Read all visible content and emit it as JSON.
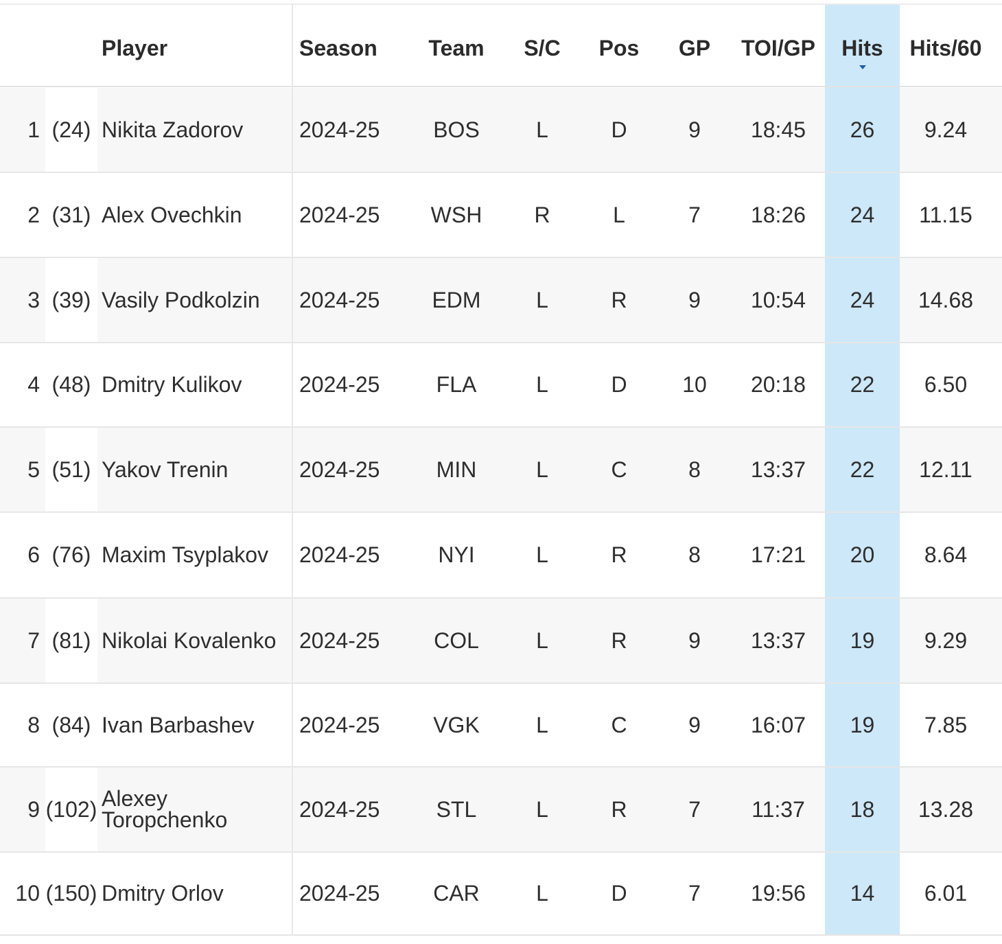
{
  "table": {
    "columns": {
      "player": "Player",
      "season": "Season",
      "team": "Team",
      "sc": "S/C",
      "pos": "Pos",
      "gp": "GP",
      "toi": "TOI/GP",
      "hits": "Hits",
      "hits60": "Hits/60"
    },
    "sorted_column": "Hits",
    "sort_direction": "descending",
    "highlight_color": "#cde8f8",
    "rows": [
      {
        "rank": "1",
        "overall": "(24)",
        "player": "Nikita Zadorov",
        "season": "2024-25",
        "team": "BOS",
        "sc": "L",
        "pos": "D",
        "gp": "9",
        "toi": "18:45",
        "hits": "26",
        "hits60": "9.24"
      },
      {
        "rank": "2",
        "overall": "(31)",
        "player": "Alex Ovechkin",
        "season": "2024-25",
        "team": "WSH",
        "sc": "R",
        "pos": "L",
        "gp": "7",
        "toi": "18:26",
        "hits": "24",
        "hits60": "11.15"
      },
      {
        "rank": "3",
        "overall": "(39)",
        "player": "Vasily Podkolzin",
        "season": "2024-25",
        "team": "EDM",
        "sc": "L",
        "pos": "R",
        "gp": "9",
        "toi": "10:54",
        "hits": "24",
        "hits60": "14.68"
      },
      {
        "rank": "4",
        "overall": "(48)",
        "player": "Dmitry Kulikov",
        "season": "2024-25",
        "team": "FLA",
        "sc": "L",
        "pos": "D",
        "gp": "10",
        "toi": "20:18",
        "hits": "22",
        "hits60": "6.50"
      },
      {
        "rank": "5",
        "overall": "(51)",
        "player": "Yakov Trenin",
        "season": "2024-25",
        "team": "MIN",
        "sc": "L",
        "pos": "C",
        "gp": "8",
        "toi": "13:37",
        "hits": "22",
        "hits60": "12.11"
      },
      {
        "rank": "6",
        "overall": "(76)",
        "player": "Maxim Tsyplakov",
        "season": "2024-25",
        "team": "NYI",
        "sc": "L",
        "pos": "R",
        "gp": "8",
        "toi": "17:21",
        "hits": "20",
        "hits60": "8.64"
      },
      {
        "rank": "7",
        "overall": "(81)",
        "player": "Nikolai Kovalenko",
        "season": "2024-25",
        "team": "COL",
        "sc": "L",
        "pos": "R",
        "gp": "9",
        "toi": "13:37",
        "hits": "19",
        "hits60": "9.29"
      },
      {
        "rank": "8",
        "overall": "(84)",
        "player": "Ivan Barbashev",
        "season": "2024-25",
        "team": "VGK",
        "sc": "L",
        "pos": "C",
        "gp": "9",
        "toi": "16:07",
        "hits": "19",
        "hits60": "7.85"
      },
      {
        "rank": "9",
        "overall": "(102)",
        "player": "Alexey Toropchenko",
        "season": "2024-25",
        "team": "STL",
        "sc": "L",
        "pos": "R",
        "gp": "7",
        "toi": "11:37",
        "hits": "18",
        "hits60": "13.28"
      },
      {
        "rank": "10",
        "overall": "(150)",
        "player": "Dmitry Orlov",
        "season": "2024-25",
        "team": "CAR",
        "sc": "L",
        "pos": "D",
        "gp": "7",
        "toi": "19:56",
        "hits": "14",
        "hits60": "6.01"
      }
    ]
  }
}
